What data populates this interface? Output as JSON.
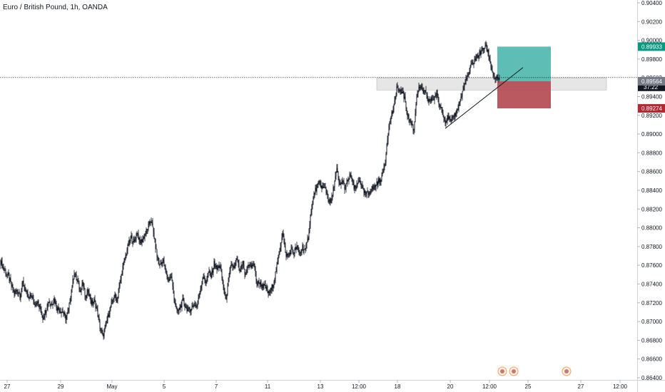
{
  "chart_data": {
    "type": "candlestick",
    "title": "Euro / British Pound, 1h, OANDA",
    "ylim": [
      0.864,
      0.904
    ],
    "y_ticks": [
      0.864,
      0.866,
      0.868,
      0.87,
      0.872,
      0.874,
      0.876,
      0.878,
      0.88,
      0.882,
      0.884,
      0.886,
      0.888,
      0.89,
      0.892,
      0.894,
      0.896,
      0.898,
      0.9,
      0.902,
      0.904
    ],
    "y_tick_labels": [
      "0.86400",
      "0.86600",
      "0.86800",
      "0.87000",
      "0.87200",
      "0.87400",
      "0.87600",
      "0.87800",
      "0.88000",
      "0.88200",
      "0.88400",
      "0.88600",
      "0.88800",
      "0.89000",
      "0.89200",
      "0.89400",
      "0.89600",
      "0.89800",
      "0.90000",
      "0.90200",
      "0.90400"
    ],
    "x_ticks": [
      "27",
      "29",
      "May",
      "5",
      "7",
      "11",
      "13",
      "12:00",
      "18",
      "20",
      "12:00",
      "25",
      "27",
      "12:00"
    ],
    "series_path": [
      [
        0,
        0.8766
      ],
      [
        4,
        0.8758
      ],
      [
        8,
        0.8752
      ],
      [
        12,
        0.8748
      ],
      [
        16,
        0.8738
      ],
      [
        20,
        0.873
      ],
      [
        24,
        0.8734
      ],
      [
        28,
        0.8728
      ],
      [
        32,
        0.8742
      ],
      [
        36,
        0.8732
      ],
      [
        40,
        0.8724
      ],
      [
        44,
        0.8728
      ],
      [
        48,
        0.8718
      ],
      [
        52,
        0.8722
      ],
      [
        56,
        0.8714
      ],
      [
        60,
        0.8704
      ],
      [
        64,
        0.8712
      ],
      [
        68,
        0.8722
      ],
      [
        72,
        0.8718
      ],
      [
        76,
        0.8724
      ],
      [
        80,
        0.8714
      ],
      [
        84,
        0.8712
      ],
      [
        88,
        0.871
      ],
      [
        92,
        0.8704
      ],
      [
        96,
        0.8712
      ],
      [
        100,
        0.8734
      ],
      [
        104,
        0.8752
      ],
      [
        108,
        0.8744
      ],
      [
        112,
        0.8732
      ],
      [
        116,
        0.8742
      ],
      [
        120,
        0.8724
      ],
      [
        124,
        0.8734
      ],
      [
        128,
        0.872
      ],
      [
        132,
        0.8722
      ],
      [
        136,
        0.8712
      ],
      [
        140,
        0.8694
      ],
      [
        144,
        0.8684
      ],
      [
        148,
        0.8694
      ],
      [
        152,
        0.8708
      ],
      [
        156,
        0.8718
      ],
      [
        160,
        0.8728
      ],
      [
        164,
        0.8722
      ],
      [
        168,
        0.874
      ],
      [
        172,
        0.8758
      ],
      [
        176,
        0.877
      ],
      [
        180,
        0.8782
      ],
      [
        184,
        0.879
      ],
      [
        188,
        0.8784
      ],
      [
        192,
        0.8796
      ],
      [
        196,
        0.8784
      ],
      [
        200,
        0.8788
      ],
      [
        204,
        0.8794
      ],
      [
        208,
        0.8802
      ],
      [
        212,
        0.8808
      ],
      [
        216,
        0.879
      ],
      [
        220,
        0.877
      ],
      [
        224,
        0.876
      ],
      [
        228,
        0.8766
      ],
      [
        232,
        0.8754
      ],
      [
        236,
        0.8744
      ],
      [
        240,
        0.8748
      ],
      [
        244,
        0.8724
      ],
      [
        248,
        0.871
      ],
      [
        252,
        0.8714
      ],
      [
        256,
        0.8722
      ],
      [
        260,
        0.8716
      ],
      [
        264,
        0.8712
      ],
      [
        268,
        0.8714
      ],
      [
        272,
        0.8718
      ],
      [
        276,
        0.8716
      ],
      [
        280,
        0.8732
      ],
      [
        284,
        0.8748
      ],
      [
        288,
        0.8742
      ],
      [
        292,
        0.8752
      ],
      [
        296,
        0.8748
      ],
      [
        300,
        0.8762
      ],
      [
        304,
        0.8756
      ],
      [
        308,
        0.876
      ],
      [
        312,
        0.8742
      ],
      [
        316,
        0.8722
      ],
      [
        320,
        0.874
      ],
      [
        324,
        0.8762
      ],
      [
        328,
        0.8756
      ],
      [
        332,
        0.8768
      ],
      [
        336,
        0.8752
      ],
      [
        340,
        0.8762
      ],
      [
        344,
        0.8748
      ],
      [
        348,
        0.8762
      ],
      [
        352,
        0.8758
      ],
      [
        356,
        0.8762
      ],
      [
        360,
        0.874
      ],
      [
        364,
        0.8742
      ],
      [
        368,
        0.8738
      ],
      [
        372,
        0.8736
      ],
      [
        376,
        0.873
      ],
      [
        380,
        0.8734
      ],
      [
        384,
        0.8744
      ],
      [
        388,
        0.8758
      ],
      [
        392,
        0.8776
      ],
      [
        396,
        0.8796
      ],
      [
        400,
        0.8772
      ],
      [
        404,
        0.877
      ],
      [
        408,
        0.8776
      ],
      [
        412,
        0.8774
      ],
      [
        416,
        0.878
      ],
      [
        420,
        0.8772
      ],
      [
        424,
        0.878
      ],
      [
        428,
        0.8776
      ],
      [
        432,
        0.879
      ],
      [
        436,
        0.882
      ],
      [
        440,
        0.8836
      ],
      [
        444,
        0.8844
      ],
      [
        448,
        0.8848
      ],
      [
        452,
        0.8842
      ],
      [
        456,
        0.8842
      ],
      [
        460,
        0.883
      ],
      [
        464,
        0.8826
      ],
      [
        468,
        0.8846
      ],
      [
        472,
        0.8862
      ],
      [
        476,
        0.8844
      ],
      [
        480,
        0.885
      ],
      [
        484,
        0.8842
      ],
      [
        488,
        0.8852
      ],
      [
        492,
        0.8856
      ],
      [
        496,
        0.8842
      ],
      [
        500,
        0.8844
      ],
      [
        504,
        0.8852
      ],
      [
        508,
        0.884
      ],
      [
        512,
        0.8836
      ],
      [
        516,
        0.8836
      ],
      [
        520,
        0.8842
      ],
      [
        524,
        0.8842
      ],
      [
        528,
        0.8848
      ],
      [
        532,
        0.885
      ],
      [
        536,
        0.8856
      ],
      [
        540,
        0.8872
      ],
      [
        544,
        0.8904
      ],
      [
        548,
        0.892
      ],
      [
        552,
        0.8928
      ],
      [
        556,
        0.895
      ],
      [
        560,
        0.8944
      ],
      [
        564,
        0.8946
      ],
      [
        568,
        0.8934
      ],
      [
        572,
        0.8918
      ],
      [
        576,
        0.8912
      ],
      [
        580,
        0.8904
      ],
      [
        584,
        0.8942
      ],
      [
        588,
        0.895
      ],
      [
        592,
        0.8946
      ],
      [
        596,
        0.8944
      ],
      [
        600,
        0.8936
      ],
      [
        604,
        0.8936
      ],
      [
        608,
        0.8938
      ],
      [
        612,
        0.8944
      ],
      [
        616,
        0.893
      ],
      [
        620,
        0.8926
      ],
      [
        624,
        0.8914
      ],
      [
        628,
        0.8918
      ],
      [
        632,
        0.8912
      ],
      [
        636,
        0.892
      ],
      [
        640,
        0.8924
      ],
      [
        644,
        0.8934
      ],
      [
        648,
        0.8944
      ],
      [
        652,
        0.8956
      ],
      [
        656,
        0.8962
      ],
      [
        660,
        0.8972
      ],
      [
        664,
        0.8978
      ],
      [
        668,
        0.8982
      ],
      [
        672,
        0.8986
      ],
      [
        676,
        0.899
      ],
      [
        680,
        0.8994
      ],
      [
        684,
        0.8988
      ],
      [
        688,
        0.8972
      ],
      [
        692,
        0.8962
      ],
      [
        696,
        0.8958
      ],
      [
        700,
        0.896
      ]
    ],
    "last_price": {
      "value": 0.89603,
      "label": "0.89603"
    },
    "countdown": "37:22",
    "price_labels": [
      {
        "name": "take-profit",
        "value": 0.89933,
        "label": "0.89933",
        "color": "#089981"
      },
      {
        "name": "entry",
        "value": 0.89564,
        "label": "0.89564",
        "color": "#787b86"
      },
      {
        "name": "stop-loss",
        "value": 0.89274,
        "label": "0.89274",
        "color": "#b22833"
      }
    ],
    "zone": {
      "y_top": 0.896,
      "y_bottom": 0.8947
    },
    "position": {
      "entry": 0.89564,
      "target": 0.89933,
      "stop": 0.89274
    },
    "trendline": {
      "from": 0.8906,
      "to": 0.8971
    },
    "colors": {
      "candle": "#131722",
      "profit_fill": "#4db6ac",
      "loss_fill": "#b2474e",
      "zone_fill": "#e6e6e6",
      "axis_line": "#d1d4dc"
    }
  }
}
